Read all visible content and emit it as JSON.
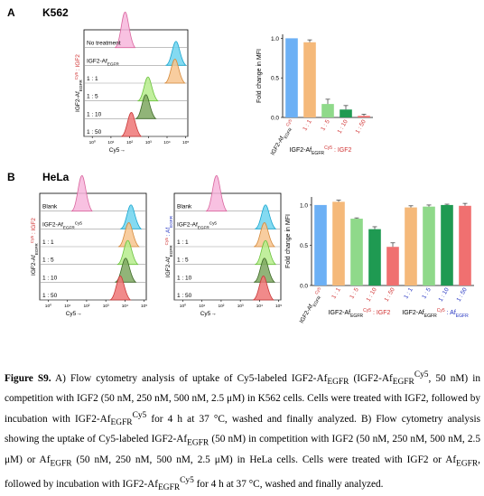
{
  "panel_a": {
    "letter": "A",
    "cell_line": "K562",
    "flow": {
      "y_title_main": "IGF2-Af",
      "y_title_sub": "EGFR",
      "y_title_sup": "Cy5",
      "y_title_tail": " : IGF2",
      "rows": [
        "No treatment",
        "IGF2-Af",
        "1 : 1",
        "1 : 5",
        "1 : 10",
        "1 : 50"
      ],
      "row2_sub": "EGFR",
      "x_title": "Cy5→",
      "x_ticks": [
        "10⁰",
        "10¹",
        "10²",
        "10³",
        "10⁴",
        "10⁵"
      ]
    },
    "bar_ylabel": "Fold change in MFI",
    "bar_xlabel": "IGF2-Af",
    "bar_xlabel_sub": "EGFR",
    "bar_xlabel_sup": "Cy5",
    "bar_xlabel_tail": " : IGF2"
  },
  "panel_b": {
    "letter": "B",
    "cell_line": "HeLa",
    "flow1": {
      "y_title_main": "IGF2-Af",
      "y_title_sub": "EGFR",
      "y_title_sup": "Cy5",
      "y_title_tail": " : IGF2",
      "rows": [
        "Blank",
        "IGF2-Af",
        "1 : 1",
        "1 : 5",
        "1 : 10",
        "1 : 50"
      ],
      "row2_sub": "EGFR",
      "row2_sup": "Cy5",
      "x_title": "Cy5→",
      "x_ticks": [
        "10⁰",
        "10¹",
        "10²",
        "10³",
        "10⁴",
        "10⁵"
      ]
    },
    "flow2": {
      "y_title_main": "IGF2-Af",
      "y_title_sub": "EGFR",
      "y_title_sup": "Cy5",
      "y_title_tail": " : Af",
      "y_title_tail_sub": "EGFR",
      "rows": [
        "Blank",
        "IGF2-Af",
        "1 : 1",
        "1 : 5",
        "1 : 10",
        "1 : 50"
      ],
      "row2_sub": "EGFR",
      "row2_sup": "Cy5",
      "x_title": "Cy5→",
      "x_ticks": [
        "10⁰",
        "10¹",
        "10²",
        "10³",
        "10⁴",
        "10⁵"
      ]
    },
    "bar_ylabel": "Fold change in MFI",
    "group1_label": "IGF2-Af",
    "group1_sub": "EGFR",
    "group1_sup": "Cy5",
    "group1_tail": " : IGF2",
    "group2_label": "IGF2-Af",
    "group2_sub": "EGFR",
    "group2_sup": "Cy5",
    "group2_tail": " : Af",
    "group2_tail_sub": "EGFR"
  },
  "chart_data": [
    {
      "type": "bar",
      "panel": "A",
      "categories": [
        "IGF2-AfEGFR Cy5",
        "1 : 1",
        "1 : 5",
        "1 : 10",
        "1 : 50"
      ],
      "values": [
        1.0,
        0.95,
        0.17,
        0.1,
        0.02
      ],
      "errors": [
        0.0,
        0.03,
        0.06,
        0.05,
        0.02
      ],
      "colors": [
        "#6cb0f5",
        "#f5b97a",
        "#8fd98a",
        "#1f9a52",
        "#f07070"
      ],
      "ylabel": "Fold change in MFI",
      "xlabel": "IGF2-AfEGFR Cy5 : IGF2",
      "ylim": [
        0,
        1.05
      ],
      "yticks": [
        "0.0",
        "0.5",
        "1.0"
      ]
    },
    {
      "type": "bar",
      "panel": "B",
      "categories": [
        "IGF2-AfEGFR Cy5",
        "1 : 1",
        "1 : 5",
        "1 : 10",
        "1 : 50",
        "1 : 1",
        "1 : 5",
        "1 : 10",
        "1 : 50"
      ],
      "values": [
        1.0,
        1.04,
        0.83,
        0.7,
        0.48,
        0.97,
        0.98,
        1.0,
        0.99
      ],
      "errors": [
        0.0,
        0.02,
        0.01,
        0.03,
        0.05,
        0.02,
        0.02,
        0.01,
        0.03
      ],
      "colors": [
        "#6cb0f5",
        "#f5b97a",
        "#8fd98a",
        "#1f9a52",
        "#f07070",
        "#f5b97a",
        "#8fd98a",
        "#1f9a52",
        "#f07070"
      ],
      "ylabel": "Fold change in MFI",
      "ylim": [
        0,
        1.1
      ],
      "yticks": [
        "0.0",
        "0.5",
        "1.0"
      ]
    }
  ],
  "caption": {
    "label": "Figure S9.",
    "text": " A) Flow cytometry analysis of uptake of Cy5-labeled IGF2-Af",
    "t1_sub": "EGFR",
    "t2": " (IGF2-Af",
    "t2_sub": "EGFR",
    "t2_sup": "Cy5",
    "t3": ", 50 nM) in competition with IGF2 (50 nM, 250 nM, 500 nM, 2.5 μM) in K562 cells. Cells were treated with IGF2, followed by incubation with IGF2-Af",
    "t3_sub": "EGFR",
    "t3_sup": "Cy5",
    "t4": " for 4 h at 37 °C, washed and finally analyzed. B) Flow cytometry analysis showing the uptake of Cy5-labeled IGF2-Af",
    "t4_sub": "EGFR",
    "t5": " (50 nM) in competition with IGF2 (50 nM, 250 nM, 500 nM, 2.5 μM) or Af",
    "t5_sub": "EGFR",
    "t6": " (50 nM, 250 nM, 500 nM, 2.5 μM) in HeLa cells. Cells were treated with IGF2 or Af",
    "t6_sub": "EGFR",
    "t7": ", followed by incubation with IGF2-Af",
    "t7_sub": "EGFR",
    "t7_sup": "Cy5",
    "t8": " for 4 h at 37 °C, washed and finally analyzed."
  }
}
